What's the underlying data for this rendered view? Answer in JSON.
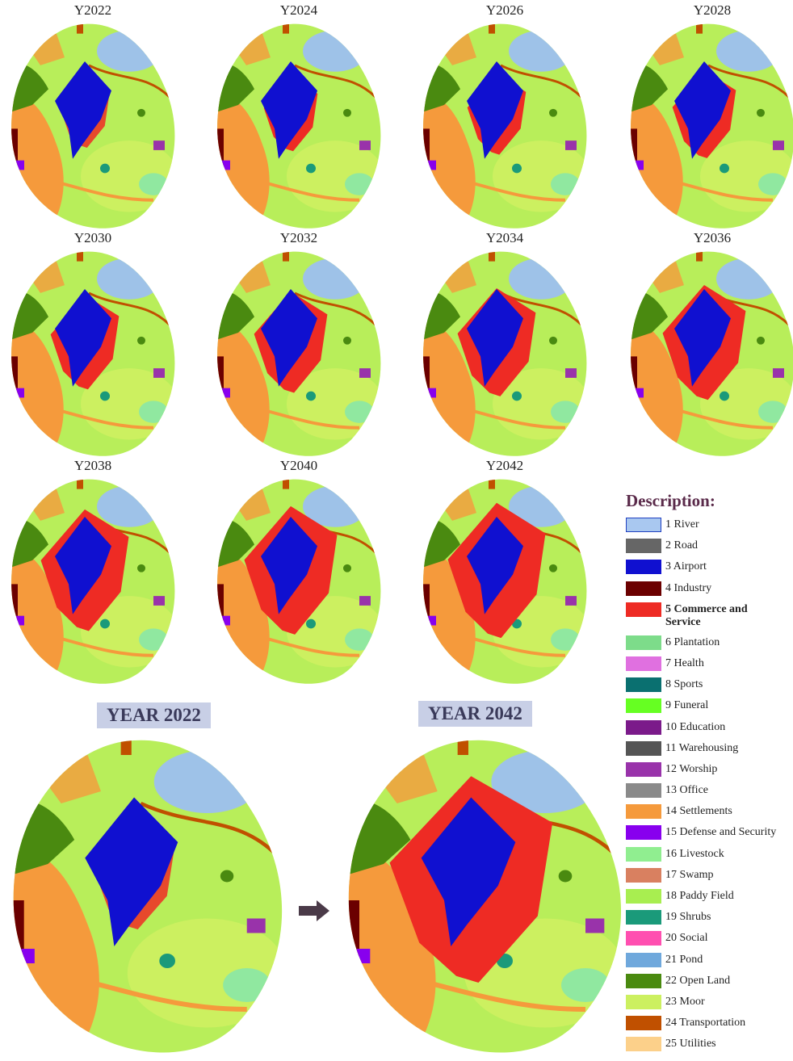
{
  "maps": [
    {
      "label": "Y2022"
    },
    {
      "label": "Y2024"
    },
    {
      "label": "Y2026"
    },
    {
      "label": "Y2028"
    },
    {
      "label": "Y2030"
    },
    {
      "label": "Y2032"
    },
    {
      "label": "Y2034"
    },
    {
      "label": "Y2036"
    },
    {
      "label": "Y2038"
    },
    {
      "label": "Y2040"
    },
    {
      "label": "Y2042"
    }
  ],
  "comparison": [
    {
      "label": "YEAR 2022"
    },
    {
      "label": "YEAR 2042"
    }
  ],
  "legend": {
    "title": "Description:",
    "items": [
      {
        "label": "1 River",
        "color": "#a9c8f0"
      },
      {
        "label": "2 Road",
        "color": "#666666"
      },
      {
        "label": "3 Airport",
        "color": "#1010d0"
      },
      {
        "label": "4 Industry",
        "color": "#6b0000"
      },
      {
        "label": "5 Commerce and Service",
        "color": "#ee2b24",
        "bold": true
      },
      {
        "label": "6 Plantation",
        "color": "#7ddc8a"
      },
      {
        "label": "7 Health",
        "color": "#e070e0"
      },
      {
        "label": "8 Sports",
        "color": "#0a7070"
      },
      {
        "label": "9 Funeral",
        "color": "#66ff22"
      },
      {
        "label": "10 Education",
        "color": "#7b1a8a"
      },
      {
        "label": "11 Warehousing",
        "color": "#555555"
      },
      {
        "label": "12 Worship",
        "color": "#9933aa"
      },
      {
        "label": "13 Office",
        "color": "#8a8a8a"
      },
      {
        "label": "14 Settlements",
        "color": "#f59a3c"
      },
      {
        "label": "15 Defense and Security",
        "color": "#8800ee"
      },
      {
        "label": "16 Livestock",
        "color": "#90ee90"
      },
      {
        "label": "17 Swamp",
        "color": "#d98060"
      },
      {
        "label": "18 Paddy Field",
        "color": "#a8ee50"
      },
      {
        "label": "19 Shrubs",
        "color": "#1a9a7a"
      },
      {
        "label": "20 Social",
        "color": "#ff4fb0"
      },
      {
        "label": "21 Pond",
        "color": "#6fa8dc"
      },
      {
        "label": "22 Open Land",
        "color": "#4a8a10"
      },
      {
        "label": "23 Moor",
        "color": "#ccf060"
      },
      {
        "label": "24 Transportation",
        "color": "#c05000"
      },
      {
        "label": "25 Utilities",
        "color": "#fcd08a"
      }
    ]
  }
}
